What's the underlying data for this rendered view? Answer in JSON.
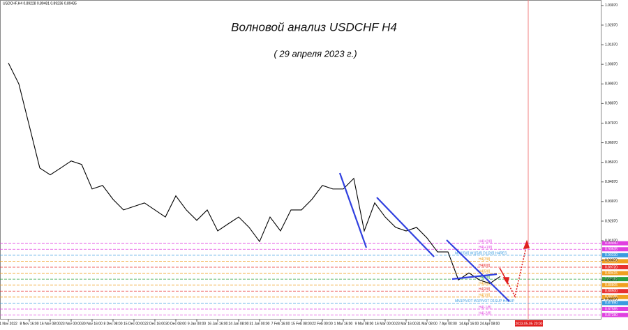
{
  "chart_data": {
    "type": "line",
    "title": "Волновой анализ USDCHF H4",
    "subtitle": "( 29 апреля 2023 г.)",
    "header": "USDCHF,H4  0.89228 0.89481 0.89236 0.89435",
    "marker_label": "2023.05.05 20:00",
    "categories": [
      "1 Nov 2022",
      null,
      "8 Nov 16:00",
      null,
      "16 Nov 08:00",
      null,
      "23 Nov 00:00",
      null,
      "30 Nov 16:00",
      null,
      "8 Dec 08:00",
      null,
      "15 Dec 00:00",
      null,
      "22 Dec 16:00",
      null,
      "30 Dec 08:00",
      null,
      "9 Jan 00:00",
      null,
      "16 Jan 16:00",
      null,
      "24 Jan 08:00",
      null,
      "31 Jan 00:00",
      null,
      "7 Feb 16:00",
      null,
      "15 Feb 08:00",
      null,
      "22 Feb 00:00",
      null,
      "1 Mar 16:00",
      null,
      "9 Mar 08:00",
      null,
      "16 Mar 00:00",
      null,
      "23 Mar 16:00",
      null,
      "31 Mar 08:00",
      null,
      "7 Apr 00:00",
      null,
      "14 Apr 16:00",
      null,
      "24 Apr 08:00",
      null
    ],
    "series": [
      {
        "name": "USDCHF",
        "color": "#000000",
        "values": [
          1.0014,
          0.9907,
          0.9693,
          0.9478,
          0.9443,
          0.9478,
          0.9514,
          0.9496,
          0.9371,
          0.9389,
          0.9318,
          0.9264,
          0.9282,
          0.93,
          0.9264,
          0.9228,
          0.9336,
          0.9264,
          0.9211,
          0.9264,
          0.9157,
          0.9193,
          0.9228,
          0.9175,
          0.9103,
          0.9228,
          0.9157,
          0.9264,
          0.9264,
          0.9318,
          0.9389,
          0.9371,
          0.9371,
          0.9425,
          0.9157,
          0.93,
          0.9228,
          0.9175,
          0.9157,
          0.9175,
          0.9121,
          0.905,
          0.905,
          0.8907,
          0.8943,
          0.8907,
          0.8889,
          0.8925
        ]
      }
    ],
    "ylim": [
      0.8705,
      1.0335
    ],
    "yticks": [
      {
        "value": 1.0307,
        "label": "1.03070"
      },
      {
        "value": 1.0207,
        "label": "1.02070"
      },
      {
        "value": 1.0107,
        "label": "1.01070"
      },
      {
        "value": 1.0007,
        "label": "1.00070"
      },
      {
        "value": 0.9907,
        "label": "0.99070"
      },
      {
        "value": 0.9807,
        "label": "0.98070"
      },
      {
        "value": 0.9707,
        "label": "0.97070"
      },
      {
        "value": 0.9607,
        "label": "0.96070"
      },
      {
        "value": 0.9507,
        "label": "0.95070"
      },
      {
        "value": 0.9407,
        "label": "0.94070"
      },
      {
        "value": 0.9307,
        "label": "0.93070"
      },
      {
        "value": 0.9207,
        "label": "0.92070"
      },
      {
        "value": 0.9107,
        "label": "0.91070"
      },
      {
        "value": 0.9007,
        "label": "0.90070"
      },
      {
        "value": 0.8907,
        "label": "0.89070"
      },
      {
        "value": 0.8807,
        "label": "0.88070"
      }
    ],
    "levels": [
      {
        "name": "H4[+2/8]",
        "value": 0.9094,
        "label": "0.90940",
        "color": "#e040e0"
      },
      {
        "name": "H4[+1/8]",
        "value": 0.90635,
        "label": "0.90635",
        "color": "#e040e0"
      },
      {
        "name": "MN1[5/8] W1[5/8] D1[2/8] H4RES",
        "value": 0.9033,
        "label": "0.90330",
        "color": "#3a9be0"
      },
      {
        "name": "H4[7/8]",
        "value": 0.90025,
        "label": "0.90025",
        "color": "#f0a020"
      },
      {
        "name": "H4[6/8]",
        "value": 0.8972,
        "label": "0.89720",
        "color": "#e83030"
      },
      {
        "name": "H4[5/8]",
        "value": 0.89415,
        "label": "0.89415",
        "color": "#f0a020"
      },
      {
        "name": "H4[4/8]",
        "value": 0.8911,
        "label": "0.89110",
        "color": "#2aa040"
      },
      {
        "name": "H4[3/8]",
        "value": 0.88805,
        "label": "0.88805",
        "color": "#f0a020"
      },
      {
        "name": "H4[2/8]",
        "value": 0.885,
        "label": "0.88500",
        "color": "#e83030"
      },
      {
        "name": "H4[1/8]",
        "value": 0.88195,
        "label": "0.88195",
        "color": "#f0a020"
      },
      {
        "name": "MN1PIVOT W1PIVOT D1SUP H4SUP",
        "value": 0.8789,
        "label": "0.87890",
        "color": "#3a9be0"
      },
      {
        "name": "H4[-1/8]",
        "value": 0.87585,
        "label": "0.87585",
        "color": "#e040e0"
      },
      {
        "name": "H4[-2/8]",
        "value": 0.8728,
        "label": "0.87280",
        "color": "#e040e0"
      }
    ]
  }
}
